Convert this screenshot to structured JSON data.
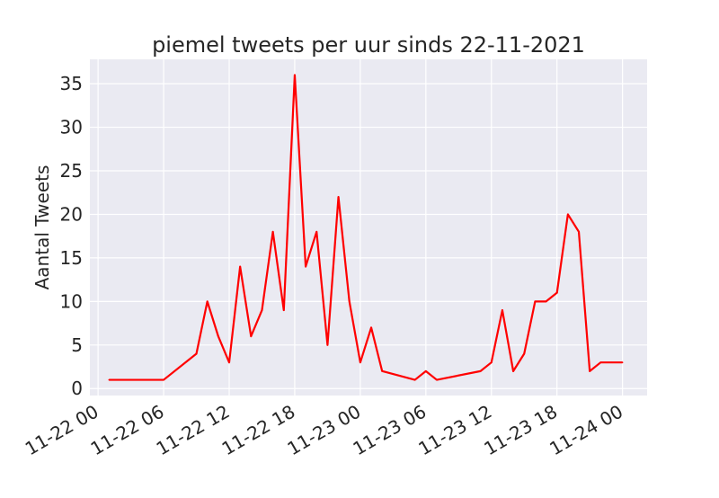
{
  "chart_data": {
    "type": "line",
    "title": "piemel tweets per uur sinds 22-11-2021",
    "xlabel": "",
    "ylabel": "Aantal Tweets",
    "x_ticks": [
      "11-22 00",
      "11-22 06",
      "11-22 12",
      "11-22 18",
      "11-23 00",
      "11-23 06",
      "11-23 12",
      "11-23 18",
      "11-24 00"
    ],
    "y_ticks": [
      "0",
      "5",
      "10",
      "15",
      "20",
      "25",
      "30",
      "35"
    ],
    "xlim": [
      "2021-11-21 23:15",
      "2021-11-24 02:15"
    ],
    "ylim": [
      -0.8,
      37.8
    ],
    "grid": true,
    "series": [
      {
        "color": "#ff0000",
        "x": [
          "2021-11-22 01:00",
          "2021-11-22 06:00",
          "2021-11-22 09:00",
          "2021-11-22 10:00",
          "2021-11-22 11:00",
          "2021-11-22 12:00",
          "2021-11-22 13:00",
          "2021-11-22 14:00",
          "2021-11-22 15:00",
          "2021-11-22 16:00",
          "2021-11-22 17:00",
          "2021-11-22 18:00",
          "2021-11-22 19:00",
          "2021-11-22 20:00",
          "2021-11-22 21:00",
          "2021-11-22 22:00",
          "2021-11-22 23:00",
          "2021-11-23 00:00",
          "2021-11-23 01:00",
          "2021-11-23 02:00",
          "2021-11-23 05:00",
          "2021-11-23 06:00",
          "2021-11-23 07:00",
          "2021-11-23 11:00",
          "2021-11-23 12:00",
          "2021-11-23 13:00",
          "2021-11-23 14:00",
          "2021-11-23 15:00",
          "2021-11-23 16:00",
          "2021-11-23 17:00",
          "2021-11-23 18:00",
          "2021-11-23 19:00",
          "2021-11-23 20:00",
          "2021-11-23 21:00",
          "2021-11-23 22:00",
          "2021-11-23 23:00",
          "2021-11-24 00:00"
        ],
        "y": [
          1,
          1,
          4,
          10,
          6,
          3,
          14,
          6,
          9,
          18,
          9,
          36,
          14,
          18,
          5,
          22,
          10,
          3,
          7,
          2,
          1,
          2,
          1,
          2,
          3,
          9,
          2,
          4,
          10,
          10,
          11,
          20,
          18,
          2,
          3,
          3,
          3
        ]
      }
    ]
  },
  "colors": {
    "plot_background": "#eaeaf2",
    "grid": "#ffffff",
    "line": "#ff0000"
  }
}
